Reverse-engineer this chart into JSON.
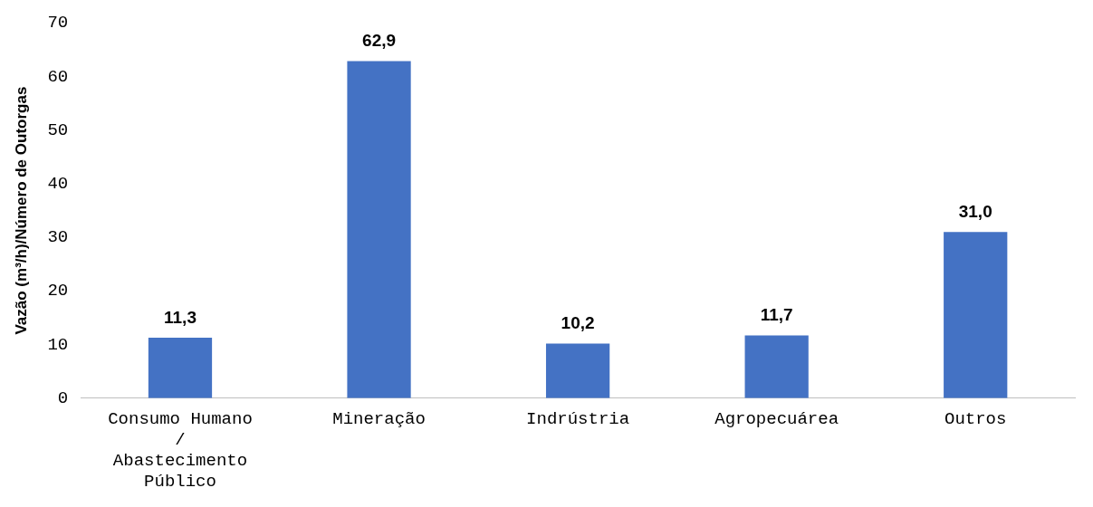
{
  "chart_data": {
    "type": "bar",
    "ylabel": "Vazão (m³/h)/Número de Outorgas",
    "categories": [
      "Consumo Humano / Abastecimento Público",
      "Mineração",
      "Indrústria",
      "Agropecuárea",
      "Outros"
    ],
    "values": [
      11.3,
      62.9,
      10.2,
      11.7,
      31.0
    ],
    "value_labels": [
      "11,3",
      "62,9",
      "10,2",
      "11,7",
      "31,0"
    ],
    "color": "#4472c4",
    "ylim": [
      0,
      70
    ],
    "yticks": [
      0,
      10,
      20,
      30,
      40,
      50,
      60,
      70
    ],
    "grid": false,
    "legend": false
  }
}
